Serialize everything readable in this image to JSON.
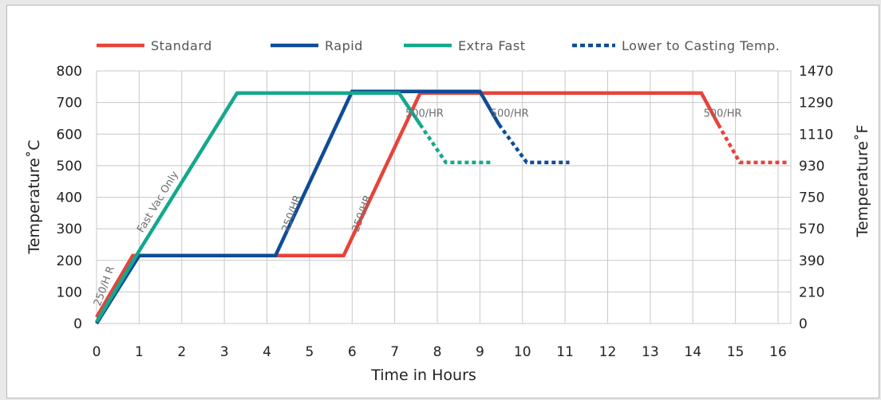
{
  "chart_data": {
    "type": "line",
    "xlabel": "Time in Hours",
    "ylabel_left": "Temperature˚C",
    "ylabel_right": "Temperature˚F",
    "xlim": [
      0,
      16.3
    ],
    "ylim": [
      0,
      800
    ],
    "x_ticks": [
      0,
      1,
      2,
      3,
      4,
      5,
      6,
      7,
      8,
      9,
      10,
      11,
      12,
      13,
      14,
      15,
      16
    ],
    "y_ticks": [
      0,
      100,
      200,
      300,
      400,
      500,
      600,
      700,
      800
    ],
    "y_right_ticks": [
      {
        "value": 0,
        "label": "0"
      },
      {
        "value": 100,
        "label": "210"
      },
      {
        "value": 200,
        "label": "390"
      },
      {
        "value": 300,
        "label": "570"
      },
      {
        "value": 400,
        "label": "750"
      },
      {
        "value": 500,
        "label": "930"
      },
      {
        "value": 600,
        "label": "1110"
      },
      {
        "value": 700,
        "label": "1290"
      },
      {
        "value": 800,
        "label": "1470"
      }
    ],
    "grid": true,
    "legend_position": "top",
    "series": [
      {
        "name": "Standard",
        "color": "#e8423a",
        "points": [
          [
            0,
            20
          ],
          [
            0.85,
            215
          ],
          [
            5.8,
            215
          ],
          [
            7.6,
            730
          ],
          [
            14.2,
            730
          ],
          [
            14.6,
            630
          ]
        ],
        "dashed_points": [
          [
            14.6,
            630
          ],
          [
            15.1,
            510
          ],
          [
            16.2,
            510
          ]
        ]
      },
      {
        "name": "Rapid",
        "color": "#0e4c96",
        "points": [
          [
            0,
            0
          ],
          [
            1,
            215
          ],
          [
            4.2,
            215
          ],
          [
            6.0,
            735
          ],
          [
            9.0,
            735
          ],
          [
            9.45,
            630
          ]
        ],
        "dashed_points": [
          [
            9.45,
            630
          ],
          [
            10.1,
            510
          ],
          [
            11.1,
            510
          ]
        ]
      },
      {
        "name": "Extra Fast",
        "color": "#14a88c",
        "points": [
          [
            0,
            5
          ],
          [
            1,
            230
          ],
          [
            3.3,
            730
          ],
          [
            7.1,
            730
          ],
          [
            7.6,
            630
          ]
        ],
        "dashed_points": [
          [
            7.6,
            630
          ],
          [
            8.2,
            510
          ],
          [
            9.3,
            510
          ]
        ]
      }
    ],
    "legend": [
      {
        "label": "Standard",
        "color": "#e8423a",
        "style": "solid"
      },
      {
        "label": "Rapid",
        "color": "#0e4c96",
        "style": "solid"
      },
      {
        "label": "Extra Fast",
        "color": "#14a88c",
        "style": "solid"
      },
      {
        "label": "Lower to Casting Temp.",
        "color": "#0e4c96",
        "style": "dashed"
      }
    ],
    "annotations": [
      {
        "text": "250/H R",
        "x": 0.25,
        "y": 115,
        "rotate": -70
      },
      {
        "text": "Fast Vac Only",
        "x": 1.5,
        "y": 380,
        "rotate": -59
      },
      {
        "text": "250/HR",
        "x": 4.65,
        "y": 345,
        "rotate": -70
      },
      {
        "text": "250/HR",
        "x": 6.3,
        "y": 345,
        "rotate": -70
      },
      {
        "text": "500/HR",
        "x": 7.7,
        "y": 655,
        "rotate": 0
      },
      {
        "text": "500/HR",
        "x": 9.7,
        "y": 655,
        "rotate": 0
      },
      {
        "text": "500/HR",
        "x": 14.7,
        "y": 655,
        "rotate": 0
      }
    ]
  }
}
